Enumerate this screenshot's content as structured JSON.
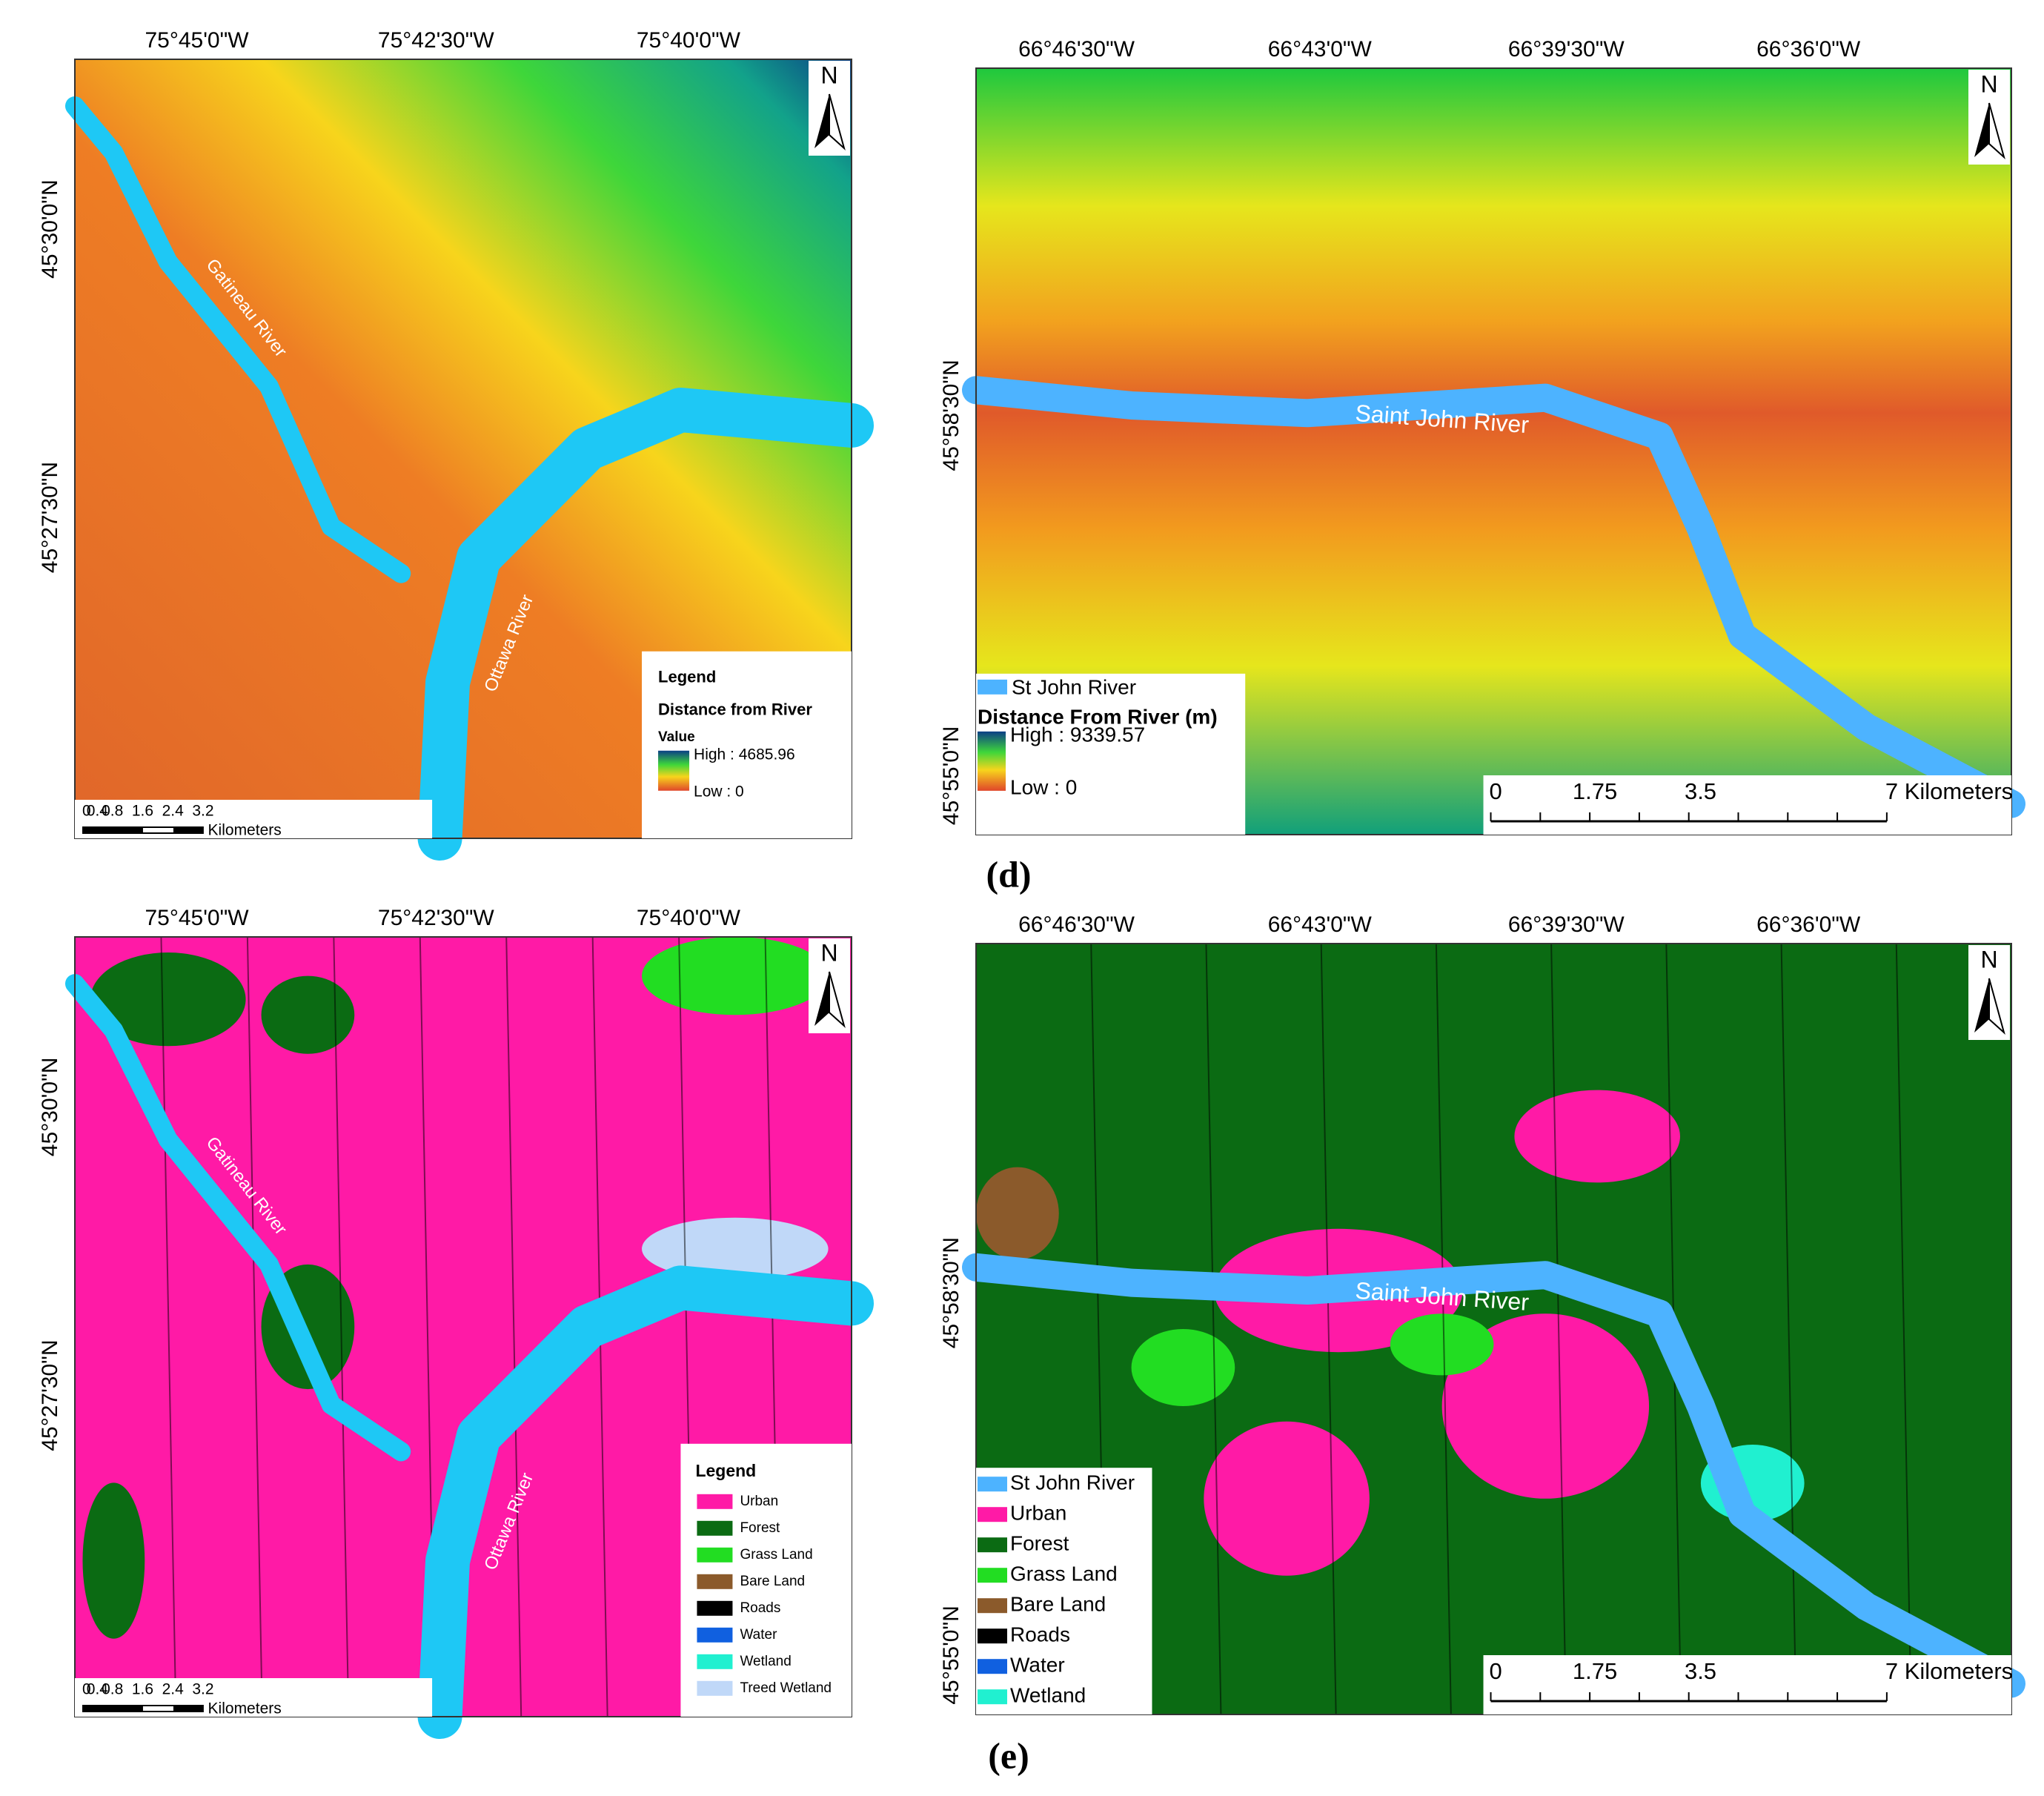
{
  "panels": [
    {
      "x_labels": [
        "75°45'0\"W",
        "75°42'30\"W",
        "75°40'0\"W"
      ],
      "y_labels": [
        "45°30'0\"N",
        "45°27'30\"N"
      ],
      "north": "N",
      "river_labels": [
        "Gatineau River",
        "Ottawa River"
      ],
      "legend": {
        "title": "Legend",
        "subtitle": "Distance from River",
        "value": "Value",
        "high": "High : 4685.96",
        "low": "Low : 0"
      },
      "scale": {
        "ticks": [
          "0",
          "0.4",
          "0.8",
          "1.6",
          "2.4",
          "3.2"
        ],
        "unit": "Kilometers"
      }
    },
    {
      "x_labels": [
        "66°46'30\"W",
        "66°43'0\"W",
        "66°39'30\"W",
        "66°36'0\"W"
      ],
      "y_labels": [
        "45°58'30\"N",
        "45°55'0\"N"
      ],
      "north": "N",
      "river_labels": [
        "Saint John River"
      ],
      "legend": {
        "items": [
          {
            "label": "St John River",
            "color": "#4db3ff"
          }
        ],
        "subtitle": "Distance From River (m)",
        "high": "High : 9339.57",
        "low": "Low : 0"
      },
      "scale": {
        "ticks": [
          "0",
          "1.75",
          "3.5",
          "7 Kilometers"
        ]
      }
    },
    {
      "x_labels": [
        "75°45'0\"W",
        "75°42'30\"W",
        "75°40'0\"W"
      ],
      "y_labels": [
        "45°30'0\"N",
        "45°27'30\"N"
      ],
      "north": "N",
      "river_labels": [
        "Gatineau River",
        "Ottawa River"
      ],
      "legend": {
        "title": "Legend",
        "items": [
          {
            "label": "Urban",
            "color": "#ff1aa6"
          },
          {
            "label": "Forest",
            "color": "#0b6b13"
          },
          {
            "label": "Grass Land",
            "color": "#22dd22"
          },
          {
            "label": "Bare Land",
            "color": "#8b5a2b"
          },
          {
            "label": "Roads",
            "color": "#000000"
          },
          {
            "label": "Water",
            "color": "#1060e0"
          },
          {
            "label": "Wetland",
            "color": "#20f0d0"
          },
          {
            "label": "Treed Wetland",
            "color": "#c0d8f8"
          }
        ]
      },
      "scale": {
        "ticks": [
          "0",
          "0.4",
          "0.8",
          "1.6",
          "2.4",
          "3.2"
        ],
        "unit": "Kilometers"
      }
    },
    {
      "x_labels": [
        "66°46'30\"W",
        "66°43'0\"W",
        "66°39'30\"W",
        "66°36'0\"W"
      ],
      "y_labels": [
        "45°58'30\"N",
        "45°55'0\"N"
      ],
      "north": "N",
      "river_labels": [
        "Saint John River"
      ],
      "legend": {
        "items": [
          {
            "label": "St John River",
            "color": "#4db3ff"
          },
          {
            "label": "Urban",
            "color": "#ff1aa6"
          },
          {
            "label": "Forest",
            "color": "#0b6b13"
          },
          {
            "label": "Grass Land",
            "color": "#22dd22"
          },
          {
            "label": "Bare Land",
            "color": "#8b5a2b"
          },
          {
            "label": "Roads",
            "color": "#000000"
          },
          {
            "label": "Water",
            "color": "#1060e0"
          },
          {
            "label": "Wetland",
            "color": "#20f0d0"
          }
        ]
      },
      "scale": {
        "ticks": [
          "0",
          "1.75",
          "3.5",
          "7 Kilometers"
        ]
      }
    }
  ],
  "captions": [
    "(d)",
    "(e)"
  ]
}
